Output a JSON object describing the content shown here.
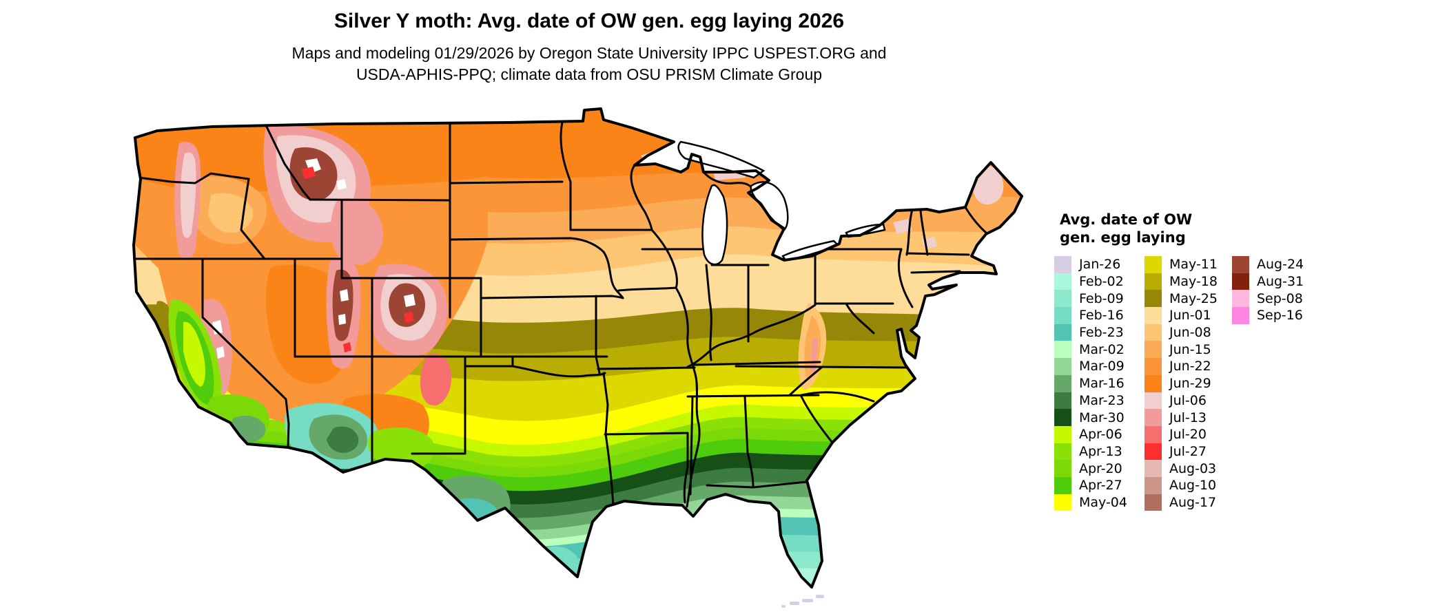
{
  "title": "Silver Y moth: Avg. date of OW gen. egg laying 2026",
  "subtitle_line1": "Maps and modeling 01/29/2026 by Oregon State University IPPC USPEST.ORG and",
  "subtitle_line2": "USDA-APHIS-PPQ; climate data from OSU PRISM Climate Group",
  "legend": {
    "title": "Avg. date of OW\ngen. egg laying",
    "columns": [
      15,
      15,
      4
    ],
    "items": [
      {
        "label": "Jan-26",
        "color": "#d6cfe4"
      },
      {
        "label": "Feb-02",
        "color": "#abf7dc"
      },
      {
        "label": "Feb-09",
        "color": "#8ee8cc"
      },
      {
        "label": "Feb-16",
        "color": "#76dcc4"
      },
      {
        "label": "Feb-23",
        "color": "#52c4b4"
      },
      {
        "label": "Mar-02",
        "color": "#baffbc"
      },
      {
        "label": "Mar-09",
        "color": "#93d696"
      },
      {
        "label": "Mar-16",
        "color": "#66a869"
      },
      {
        "label": "Mar-23",
        "color": "#3d7c40"
      },
      {
        "label": "Mar-30",
        "color": "#175016"
      },
      {
        "label": "Apr-06",
        "color": "#c6f800"
      },
      {
        "label": "Apr-13",
        "color": "#8be007"
      },
      {
        "label": "Apr-20",
        "color": "#7cd908"
      },
      {
        "label": "Apr-27",
        "color": "#4fcc0c"
      },
      {
        "label": "May-04",
        "color": "#ffff00"
      },
      {
        "label": "May-11",
        "color": "#dcd800"
      },
      {
        "label": "May-18",
        "color": "#b9ad04"
      },
      {
        "label": "May-25",
        "color": "#968708"
      },
      {
        "label": "Jun-01",
        "color": "#fedc99"
      },
      {
        "label": "Jun-08",
        "color": "#fec573"
      },
      {
        "label": "Jun-15",
        "color": "#fcac57"
      },
      {
        "label": "Jun-22",
        "color": "#fb9538"
      },
      {
        "label": "Jun-29",
        "color": "#fb8418"
      },
      {
        "label": "Jul-06",
        "color": "#f2cfcf"
      },
      {
        "label": "Jul-13",
        "color": "#f29b9b"
      },
      {
        "label": "Jul-20",
        "color": "#f76e6e"
      },
      {
        "label": "Jul-27",
        "color": "#fb2f2f"
      },
      {
        "label": "Aug-03",
        "color": "#e5b9b1"
      },
      {
        "label": "Aug-10",
        "color": "#cc9588"
      },
      {
        "label": "Aug-17",
        "color": "#b06f60"
      },
      {
        "label": "Aug-24",
        "color": "#9c4534"
      },
      {
        "label": "Aug-31",
        "color": "#83200e"
      },
      {
        "label": "Sep-08",
        "color": "#feb8dd"
      },
      {
        "label": "Sep-16",
        "color": "#fd86e3"
      }
    ]
  },
  "map": {
    "region": "Contiguous United States",
    "kind": "raster choropleth of average overwintering-generation egg laying date"
  }
}
